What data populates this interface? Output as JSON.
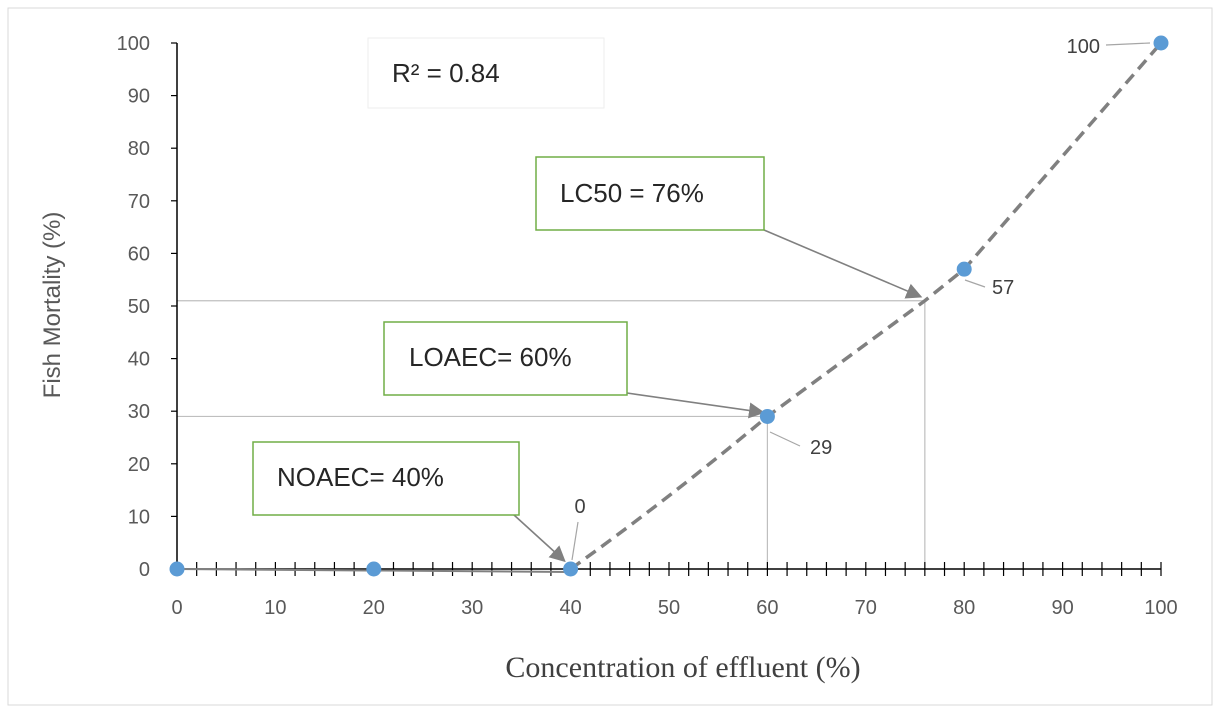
{
  "chart_data": {
    "type": "scatter",
    "xlabel": "Concentration of effluent (%)",
    "ylabel": "Fish Mortality (%)",
    "xlim": [
      0,
      100
    ],
    "ylim": [
      0,
      100
    ],
    "x_ticks": [
      0,
      10,
      20,
      30,
      40,
      50,
      60,
      70,
      80,
      90,
      100
    ],
    "y_ticks": [
      0,
      10,
      20,
      30,
      40,
      50,
      60,
      70,
      80,
      90,
      100
    ],
    "x_minor_step": 2,
    "series": [
      {
        "x": [
          0,
          20,
          40,
          60,
          80,
          100
        ],
        "y": [
          0,
          0,
          0,
          29,
          57,
          100
        ],
        "marker_color": "#5B9BD5"
      }
    ],
    "trendline": {
      "style": "dashed",
      "color": "#808080",
      "x": [
        0,
        40,
        60,
        76,
        80,
        100
      ],
      "y": [
        0,
        0,
        29,
        51,
        57,
        100
      ]
    },
    "data_labels": [
      {
        "text": "0",
        "x": 40,
        "y": 0
      },
      {
        "text": "29",
        "x": 60,
        "y": 29
      },
      {
        "text": "57",
        "x": 80,
        "y": 57
      },
      {
        "text": "100",
        "x": 100,
        "y": 100
      }
    ],
    "annotations": [
      {
        "text": "R² = 0.84"
      },
      {
        "text": "LC50 = 76%",
        "target_x": 76,
        "target_y": 51
      },
      {
        "text": "LOAEC= 60%",
        "target_x": 60,
        "target_y": 29
      },
      {
        "text": "NOAEC= 40%",
        "target_x": 40,
        "target_y": 0
      }
    ],
    "reference_lines": [
      {
        "x": 76,
        "y": 51
      },
      {
        "x": 60,
        "y": 29
      }
    ],
    "grid": false,
    "legend": "none",
    "colors": {
      "box_border": "#70AD47",
      "arrow": "#808080",
      "axis": "#000000"
    }
  }
}
